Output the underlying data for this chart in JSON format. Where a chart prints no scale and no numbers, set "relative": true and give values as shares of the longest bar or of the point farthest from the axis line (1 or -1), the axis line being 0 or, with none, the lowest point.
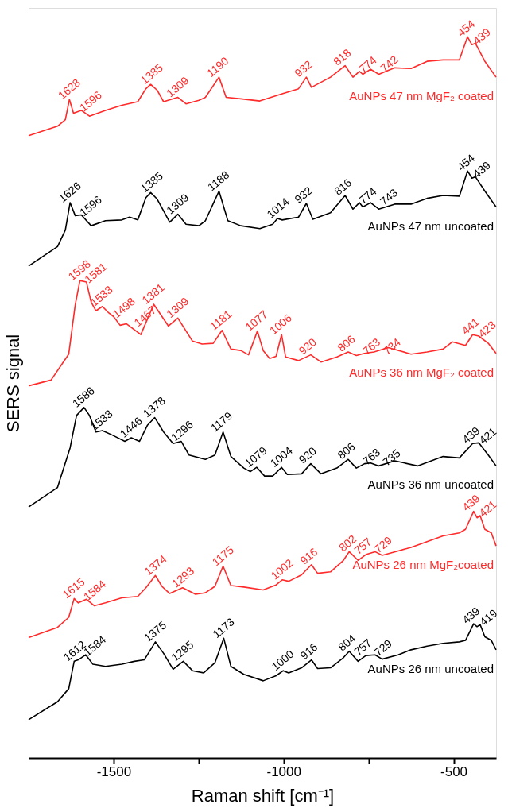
{
  "chart_data": {
    "type": "line",
    "relative": true,
    "xlabel": "Raman shift [cm⁻¹]",
    "ylabel": "SERS signal",
    "xlim": [
      -1750,
      -375
    ],
    "xticks": [
      -1500,
      {
        "value": -1250,
        "label": null
      },
      -1000,
      {
        "value": -750,
        "label": null
      },
      -500
    ],
    "legend": false,
    "grid": false,
    "marker": "none",
    "line_style": "solid",
    "series": [
      {
        "name": "AuNPs 47 nm MgF₂ coated",
        "color": "#ff2a2a",
        "x": [
          -1750,
          -1665,
          -1642,
          -1630,
          -1618,
          -1595,
          -1571,
          -1524,
          -1476,
          -1429,
          -1405,
          -1391,
          -1372,
          -1353,
          -1311,
          -1287,
          -1249,
          -1230,
          -1190,
          -1169,
          -1126,
          -1070,
          -1004,
          -956,
          -933,
          -918,
          -862,
          -819,
          -796,
          -777,
          -767,
          -744,
          -720,
          -673,
          -625,
          -578,
          -531,
          -483,
          -459,
          -446,
          -436,
          -408,
          -375
        ],
        "values": [
          0.863,
          0.876,
          0.885,
          0.913,
          0.894,
          0.898,
          0.89,
          0.898,
          0.905,
          0.91,
          0.928,
          0.934,
          0.926,
          0.91,
          0.916,
          0.907,
          0.912,
          0.916,
          0.944,
          0.916,
          0.914,
          0.911,
          0.921,
          0.928,
          0.944,
          0.93,
          0.944,
          0.96,
          0.944,
          0.952,
          0.948,
          0.955,
          0.948,
          0.957,
          0.956,
          0.966,
          0.968,
          0.968,
          1.0,
          0.989,
          0.991,
          0.966,
          0.944
        ]
      },
      {
        "name": "AuNPs 47 nm uncoated",
        "color": "#000000",
        "x": [
          -1750,
          -1665,
          -1642,
          -1628,
          -1613,
          -1595,
          -1566,
          -1524,
          -1476,
          -1453,
          -1429,
          -1405,
          -1391,
          -1372,
          -1335,
          -1311,
          -1287,
          -1249,
          -1230,
          -1190,
          -1164,
          -1126,
          -1070,
          -1032,
          -1018,
          -1004,
          -956,
          -933,
          -914,
          -862,
          -819,
          -796,
          -777,
          -767,
          -744,
          -720,
          -673,
          -625,
          -578,
          -531,
          -483,
          -459,
          -446,
          -436,
          -408,
          -375
        ],
        "values": [
          0.682,
          0.709,
          0.732,
          0.77,
          0.752,
          0.753,
          0.738,
          0.745,
          0.746,
          0.75,
          0.746,
          0.777,
          0.784,
          0.775,
          0.743,
          0.754,
          0.74,
          0.738,
          0.745,
          0.786,
          0.745,
          0.738,
          0.734,
          0.74,
          0.748,
          0.746,
          0.75,
          0.769,
          0.747,
          0.756,
          0.78,
          0.761,
          0.77,
          0.764,
          0.77,
          0.761,
          0.768,
          0.768,
          0.776,
          0.78,
          0.779,
          0.814,
          0.804,
          0.806,
          0.786,
          0.764
        ]
      },
      {
        "name": "AuNPs 36 nm MgF₂ coated",
        "color": "#ff2a2a",
        "x": [
          -1750,
          -1684,
          -1632,
          -1613,
          -1599,
          -1580,
          -1566,
          -1552,
          -1533,
          -1514,
          -1500,
          -1481,
          -1462,
          -1420,
          -1382,
          -1339,
          -1311,
          -1268,
          -1240,
          -1207,
          -1181,
          -1155,
          -1126,
          -1103,
          -1077,
          -1060,
          -1041,
          -1022,
          -1006,
          -994,
          -956,
          -920,
          -890,
          -843,
          -810,
          -786,
          -762,
          -734,
          -692,
          -625,
          -578,
          -531,
          -504,
          -465,
          -444,
          -426,
          -398,
          -375
        ],
        "values": [
          0.516,
          0.524,
          0.56,
          0.628,
          0.662,
          0.66,
          0.632,
          0.62,
          0.626,
          0.617,
          0.612,
          0.6,
          0.602,
          0.587,
          0.629,
          0.599,
          0.61,
          0.578,
          0.574,
          0.575,
          0.593,
          0.567,
          0.565,
          0.559,
          0.592,
          0.565,
          0.554,
          0.557,
          0.587,
          0.556,
          0.551,
          0.559,
          0.549,
          0.556,
          0.563,
          0.558,
          0.561,
          0.563,
          0.569,
          0.56,
          0.563,
          0.567,
          0.577,
          0.572,
          0.587,
          0.585,
          0.575,
          0.561
        ]
      },
      {
        "name": "AuNPs 36 nm uncoated",
        "color": "#000000",
        "x": [
          -1750,
          -1665,
          -1628,
          -1609,
          -1587,
          -1571,
          -1552,
          -1533,
          -1505,
          -1467,
          -1448,
          -1424,
          -1401,
          -1379,
          -1353,
          -1325,
          -1301,
          -1278,
          -1230,
          -1202,
          -1178,
          -1155,
          -1117,
          -1098,
          -1079,
          -1056,
          -1032,
          -1006,
          -989,
          -947,
          -920,
          -890,
          -843,
          -810,
          -786,
          -762,
          -744,
          -720,
          -673,
          -606,
          -531,
          -483,
          -444,
          -426,
          -398,
          -375
        ],
        "values": [
          0.348,
          0.375,
          0.43,
          0.475,
          0.486,
          0.475,
          0.452,
          0.454,
          0.448,
          0.439,
          0.444,
          0.439,
          0.461,
          0.472,
          0.452,
          0.436,
          0.439,
          0.42,
          0.414,
          0.42,
          0.452,
          0.418,
          0.402,
          0.397,
          0.403,
          0.391,
          0.391,
          0.403,
          0.393,
          0.394,
          0.408,
          0.394,
          0.402,
          0.414,
          0.402,
          0.408,
          0.409,
          0.405,
          0.412,
          0.405,
          0.418,
          0.416,
          0.436,
          0.437,
          0.42,
          0.405
        ]
      },
      {
        "name": "AuNPs 26 nm MgF₂coated",
        "color": "#ff2a2a",
        "x": [
          -1750,
          -1665,
          -1632,
          -1616,
          -1604,
          -1580,
          -1557,
          -1524,
          -1476,
          -1429,
          -1405,
          -1377,
          -1358,
          -1335,
          -1297,
          -1259,
          -1230,
          -1202,
          -1178,
          -1155,
          -1117,
          -1060,
          -1022,
          -1004,
          -985,
          -947,
          -918,
          -900,
          -862,
          -824,
          -807,
          -781,
          -758,
          -731,
          -710,
          -663,
          -625,
          -578,
          -531,
          -483,
          -465,
          -441,
          -431,
          -422,
          -408,
          -389,
          -375
        ],
        "values": [
          0.167,
          0.181,
          0.195,
          0.221,
          0.215,
          0.22,
          0.211,
          0.215,
          0.222,
          0.224,
          0.236,
          0.253,
          0.238,
          0.228,
          0.236,
          0.227,
          0.229,
          0.238,
          0.266,
          0.239,
          0.237,
          0.233,
          0.24,
          0.247,
          0.245,
          0.254,
          0.268,
          0.256,
          0.258,
          0.274,
          0.286,
          0.274,
          0.282,
          0.286,
          0.281,
          0.287,
          0.292,
          0.3,
          0.308,
          0.312,
          0.317,
          0.342,
          0.333,
          0.336,
          0.317,
          0.312,
          0.294
        ]
      },
      {
        "name": "AuNPs 26 nm uncoated",
        "color": "#000000",
        "x": [
          -1750,
          -1665,
          -1632,
          -1616,
          -1604,
          -1582,
          -1561,
          -1524,
          -1476,
          -1439,
          -1410,
          -1377,
          -1353,
          -1325,
          -1295,
          -1268,
          -1235,
          -1202,
          -1176,
          -1155,
          -1117,
          -1060,
          -1022,
          -1001,
          -985,
          -947,
          -918,
          -900,
          -862,
          -824,
          -807,
          -781,
          -758,
          -731,
          -710,
          -663,
          -625,
          -578,
          -531,
          -483,
          -465,
          -441,
          -431,
          -422,
          -408,
          -389,
          -375
        ],
        "values": [
          0.053,
          0.078,
          0.096,
          0.134,
          0.136,
          0.143,
          0.13,
          0.127,
          0.13,
          0.134,
          0.136,
          0.161,
          0.145,
          0.123,
          0.134,
          0.121,
          0.118,
          0.132,
          0.166,
          0.127,
          0.116,
          0.107,
          0.114,
          0.121,
          0.118,
          0.125,
          0.136,
          0.124,
          0.125,
          0.139,
          0.148,
          0.134,
          0.142,
          0.143,
          0.137,
          0.143,
          0.15,
          0.155,
          0.159,
          0.161,
          0.163,
          0.186,
          0.182,
          0.185,
          0.168,
          0.163,
          0.15
        ]
      }
    ],
    "annotations": [
      {
        "text": "1628",
        "x": -1628,
        "y": 0.913
      },
      {
        "text": "1596",
        "x": -1596,
        "y": 0.898
      },
      {
        "text": "1385",
        "x": -1385,
        "y": 0.934
      },
      {
        "text": "1309",
        "x": -1309,
        "y": 0.916
      },
      {
        "text": "1190",
        "x": -1190,
        "y": 0.944
      },
      {
        "text": "932",
        "x": -932,
        "y": 0.944
      },
      {
        "text": "818",
        "x": -818,
        "y": 0.96
      },
      {
        "text": "774",
        "x": -774,
        "y": 0.952
      },
      {
        "text": "742",
        "x": -742,
        "y": 0.955
      },
      {
        "text": "454",
        "x": -454,
        "y": 1.0
      },
      {
        "text": "439",
        "x": -439,
        "y": 0.991
      },
      {
        "text": "1626",
        "x": -1626,
        "y": 0.77
      },
      {
        "text": "1596",
        "x": -1596,
        "y": 0.753
      },
      {
        "text": "1385",
        "x": -1385,
        "y": 0.784
      },
      {
        "text": "1309",
        "x": -1309,
        "y": 0.754
      },
      {
        "text": "1188",
        "x": -1188,
        "y": 0.786
      },
      {
        "text": "1014",
        "x": -1014,
        "y": 0.748
      },
      {
        "text": "932",
        "x": -932,
        "y": 0.769
      },
      {
        "text": "816",
        "x": -816,
        "y": 0.78
      },
      {
        "text": "774",
        "x": -774,
        "y": 0.77
      },
      {
        "text": "743",
        "x": -743,
        "y": 0.77
      },
      {
        "text": "454",
        "x": -454,
        "y": 0.814
      },
      {
        "text": "439",
        "x": -439,
        "y": 0.806
      },
      {
        "text": "1598",
        "x": -1598,
        "y": 0.662
      },
      {
        "text": "1581",
        "x": -1581,
        "y": 0.66
      },
      {
        "text": "1533",
        "x": -1533,
        "y": 0.626
      },
      {
        "text": "1498",
        "x": -1498,
        "y": 0.612
      },
      {
        "text": "1467",
        "x": -1467,
        "y": 0.602
      },
      {
        "text": "1381",
        "x": -1381,
        "y": 0.629
      },
      {
        "text": "1309",
        "x": -1309,
        "y": 0.61
      },
      {
        "text": "1181",
        "x": -1181,
        "y": 0.593
      },
      {
        "text": "1077",
        "x": -1077,
        "y": 0.592
      },
      {
        "text": "1006",
        "x": -1006,
        "y": 0.587
      },
      {
        "text": "920",
        "x": -920,
        "y": 0.559
      },
      {
        "text": "806",
        "x": -806,
        "y": 0.563
      },
      {
        "text": "763",
        "x": -763,
        "y": 0.561
      },
      {
        "text": "734",
        "x": -734,
        "y": 0.563
      },
      {
        "text": "441",
        "x": -441,
        "y": 0.587
      },
      {
        "text": "423",
        "x": -423,
        "y": 0.585
      },
      {
        "text": "1586",
        "x": -1586,
        "y": 0.486
      },
      {
        "text": "1533",
        "x": -1533,
        "y": 0.454
      },
      {
        "text": "1446",
        "x": -1446,
        "y": 0.444
      },
      {
        "text": "1378",
        "x": -1378,
        "y": 0.472
      },
      {
        "text": "1296",
        "x": -1296,
        "y": 0.439
      },
      {
        "text": "1179",
        "x": -1179,
        "y": 0.452
      },
      {
        "text": "1079",
        "x": -1079,
        "y": 0.403
      },
      {
        "text": "1004",
        "x": -1004,
        "y": 0.403
      },
      {
        "text": "920",
        "x": -920,
        "y": 0.408
      },
      {
        "text": "806",
        "x": -806,
        "y": 0.414
      },
      {
        "text": "763",
        "x": -763,
        "y": 0.408
      },
      {
        "text": "735",
        "x": -735,
        "y": 0.409
      },
      {
        "text": "439",
        "x": -439,
        "y": 0.436
      },
      {
        "text": "421",
        "x": -421,
        "y": 0.437
      },
      {
        "text": "1615",
        "x": -1615,
        "y": 0.221
      },
      {
        "text": "1584",
        "x": -1584,
        "y": 0.22
      },
      {
        "text": "1374",
        "x": -1374,
        "y": 0.253
      },
      {
        "text": "1293",
        "x": -1293,
        "y": 0.236
      },
      {
        "text": "1175",
        "x": -1175,
        "y": 0.266
      },
      {
        "text": "1002",
        "x": -1002,
        "y": 0.247
      },
      {
        "text": "916",
        "x": -916,
        "y": 0.268
      },
      {
        "text": "802",
        "x": -802,
        "y": 0.286
      },
      {
        "text": "757",
        "x": -757,
        "y": 0.282
      },
      {
        "text": "729",
        "x": -729,
        "y": 0.286
      },
      {
        "text": "439",
        "x": -439,
        "y": 0.342
      },
      {
        "text": "421",
        "x": -421,
        "y": 0.336
      },
      {
        "text": "1612",
        "x": -1612,
        "y": 0.134
      },
      {
        "text": "1584",
        "x": -1584,
        "y": 0.143
      },
      {
        "text": "1375",
        "x": -1375,
        "y": 0.161
      },
      {
        "text": "1295",
        "x": -1295,
        "y": 0.134
      },
      {
        "text": "1173",
        "x": -1173,
        "y": 0.166
      },
      {
        "text": "1000",
        "x": -1000,
        "y": 0.121
      },
      {
        "text": "916",
        "x": -916,
        "y": 0.136
      },
      {
        "text": "804",
        "x": -804,
        "y": 0.148
      },
      {
        "text": "757",
        "x": -757,
        "y": 0.142
      },
      {
        "text": "729",
        "x": -729,
        "y": 0.143
      },
      {
        "text": "439",
        "x": -439,
        "y": 0.186
      },
      {
        "text": "419",
        "x": -419,
        "y": 0.185
      }
    ]
  }
}
